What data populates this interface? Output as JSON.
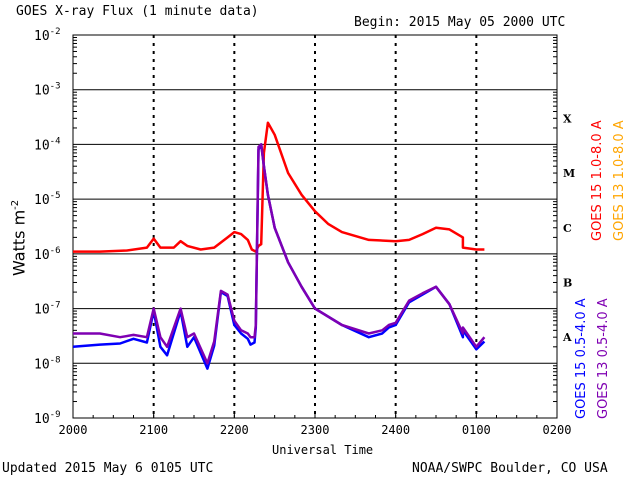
{
  "header": {
    "title": "GOES X-ray Flux (1 minute data)",
    "begin": "Begin: 2015 May 05 2000 UTC"
  },
  "footer": {
    "updated": "Updated 2015 May  6 0105 UTC",
    "credit": "NOAA/SWPC Boulder, CO USA"
  },
  "colors": {
    "goes15_long": "#ff0000",
    "goes13_long": "#ffa500",
    "goes15_short": "#0000ff",
    "goes13_short": "#7f00b2",
    "grid": "#000000",
    "background": "#ffffff"
  },
  "chart_data": {
    "type": "line",
    "title": "GOES X-ray Flux (1 minute data)",
    "xlabel": "Universal Time",
    "ylabel": "Watts m",
    "ylabel_superscript": "-2",
    "y_scale": "log",
    "ylim": [
      1e-09,
      0.01
    ],
    "xlim": [
      "2000",
      "0200"
    ],
    "x_ticks": [
      "2000",
      "2100",
      "2200",
      "2300",
      "2400",
      "0100",
      "0200"
    ],
    "y_ticks": [
      {
        "base": "10",
        "exp": "-2",
        "value": 0.01
      },
      {
        "base": "10",
        "exp": "-3",
        "value": 0.001
      },
      {
        "base": "10",
        "exp": "-4",
        "value": 0.0001
      },
      {
        "base": "10",
        "exp": "-5",
        "value": 1e-05
      },
      {
        "base": "10",
        "exp": "-6",
        "value": 1e-06
      },
      {
        "base": "10",
        "exp": "-7",
        "value": 1e-07
      },
      {
        "base": "10",
        "exp": "-8",
        "value": 1e-08
      },
      {
        "base": "10",
        "exp": "-9",
        "value": 1e-09
      }
    ],
    "flare_classes": [
      {
        "label": "X",
        "value": 0.0003
      },
      {
        "label": "M",
        "value": 3e-05
      },
      {
        "label": "C",
        "value": 3e-06
      },
      {
        "label": "B",
        "value": 3e-07
      },
      {
        "label": "A",
        "value": 3e-08
      }
    ],
    "grid": "horizontal lines at each decade from 1e-8 to 1e-3, dashed vertical lines at each hour",
    "legend_placement": "right, vertical",
    "legend": [
      {
        "text": "GOES 15 1.0-8.0 A",
        "color_key": "goes15_long"
      },
      {
        "text": "GOES 13 1.0-8.0 A",
        "color_key": "goes13_long"
      },
      {
        "text": "GOES 15 0.5-4.0 A",
        "color_key": "goes15_short"
      },
      {
        "text": "GOES 13 0.5-4.0 A",
        "color_key": "goes13_short"
      }
    ],
    "series": [
      {
        "name": "GOES 15 1.0-8.0 A",
        "color_key": "goes15_long",
        "x": [
          "20:00",
          "20:20",
          "20:40",
          "20:55",
          "21:00",
          "21:05",
          "21:15",
          "21:20",
          "21:25",
          "21:35",
          "21:45",
          "21:55",
          "22:00",
          "22:05",
          "22:10",
          "22:13",
          "22:16",
          "22:18",
          "22:20",
          "22:22",
          "22:25",
          "22:30",
          "22:40",
          "22:50",
          "23:00",
          "23:10",
          "23:20",
          "23:40",
          "24:00",
          "24:10",
          "24:20",
          "24:30",
          "24:40",
          "24:50",
          "00:50",
          "01:00",
          "01:06"
        ],
        "y": [
          1.1e-06,
          1.1e-06,
          1.15e-06,
          1.3e-06,
          1.9e-06,
          1.3e-06,
          1.3e-06,
          1.7e-06,
          1.4e-06,
          1.2e-06,
          1.3e-06,
          2e-06,
          2.5e-06,
          2.3e-06,
          1.8e-06,
          1.2e-06,
          1.1e-06,
          1.4e-06,
          1.5e-06,
          7e-05,
          0.00025,
          0.00015,
          3e-05,
          1.2e-05,
          6e-06,
          3.5e-06,
          2.5e-06,
          1.8e-06,
          1.7e-06,
          1.8e-06,
          2.3e-06,
          3e-06,
          2.8e-06,
          2e-06,
          1.3e-06,
          1.2e-06,
          1.2e-06
        ]
      },
      {
        "name": "GOES 15 0.5-4.0 A",
        "color_key": "goes15_short",
        "x": [
          "20:00",
          "20:20",
          "20:35",
          "20:45",
          "20:55",
          "21:00",
          "21:05",
          "21:10",
          "21:20",
          "21:25",
          "21:30",
          "21:40",
          "21:45",
          "21:50",
          "21:55",
          "22:00",
          "22:05",
          "22:10",
          "22:12",
          "22:15",
          "22:16",
          "22:18",
          "22:20",
          "22:22",
          "22:25",
          "22:30",
          "22:40",
          "22:50",
          "23:00",
          "23:20",
          "23:40",
          "23:50",
          "23:55",
          "24:00",
          "24:10",
          "24:20",
          "24:30",
          "24:40",
          "24:50",
          "00:50",
          "01:00",
          "01:06"
        ],
        "y": [
          2e-08,
          2.2e-08,
          2.3e-08,
          2.8e-08,
          2.4e-08,
          9e-08,
          2e-08,
          1.4e-08,
          9e-08,
          2e-08,
          3e-08,
          8e-09,
          2.1e-08,
          2e-07,
          1.7e-07,
          5e-08,
          3.5e-08,
          2.8e-08,
          2.2e-08,
          2.4e-08,
          4.5e-08,
          8e-05,
          0.0001,
          4e-05,
          1.2e-05,
          3e-06,
          7e-07,
          2.5e-07,
          1e-07,
          5e-08,
          3e-08,
          3.5e-08,
          4.5e-08,
          5e-08,
          1.3e-07,
          1.8e-07,
          2.5e-07,
          1.2e-07,
          3e-08,
          4e-08,
          1.8e-08,
          2.5e-08
        ]
      },
      {
        "name": "GOES 13 0.5-4.0 A",
        "color_key": "goes13_short",
        "x": [
          "20:00",
          "20:20",
          "20:35",
          "20:45",
          "20:55",
          "21:00",
          "21:05",
          "21:10",
          "21:20",
          "21:25",
          "21:30",
          "21:40",
          "21:45",
          "21:50",
          "21:55",
          "22:00",
          "22:05",
          "22:10",
          "22:12",
          "22:15",
          "22:16",
          "22:18",
          "22:20",
          "22:22",
          "22:25",
          "22:30",
          "22:40",
          "22:50",
          "23:00",
          "23:20",
          "23:40",
          "23:50",
          "23:55",
          "24:00",
          "24:10",
          "24:20",
          "24:30",
          "24:40",
          "24:50",
          "00:50",
          "01:00",
          "01:06"
        ],
        "y": [
          3.5e-08,
          3.5e-08,
          3e-08,
          3.3e-08,
          3e-08,
          1e-07,
          3e-08,
          2e-08,
          1e-07,
          3e-08,
          3.5e-08,
          1e-08,
          2.5e-08,
          2.1e-07,
          1.8e-07,
          6e-08,
          4e-08,
          3.5e-08,
          3e-08,
          3e-08,
          5e-08,
          9e-05,
          0.0001,
          4e-05,
          1.2e-05,
          3e-06,
          7e-07,
          2.5e-07,
          1e-07,
          5e-08,
          3.5e-08,
          4e-08,
          5e-08,
          5.5e-08,
          1.4e-07,
          1.9e-07,
          2.5e-07,
          1.2e-07,
          3.5e-08,
          4.5e-08,
          2e-08,
          3e-08
        ]
      }
    ]
  }
}
